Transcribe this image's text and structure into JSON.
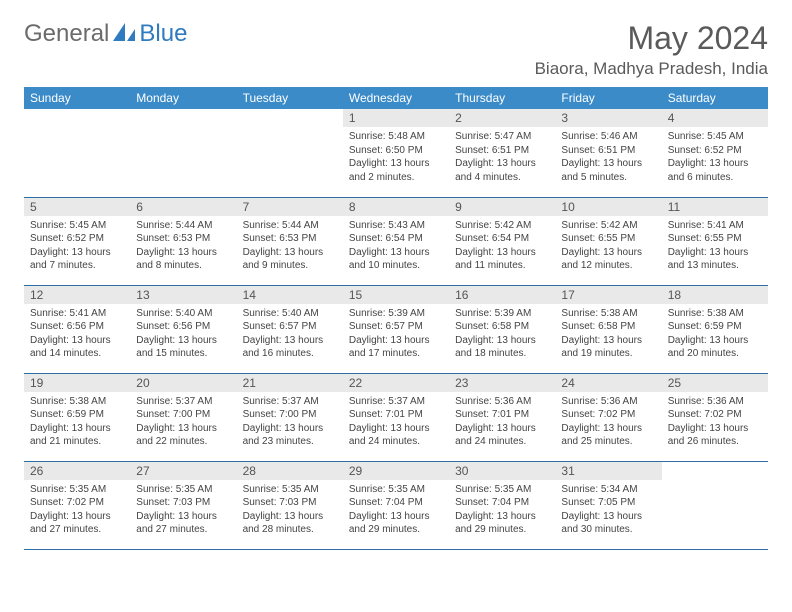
{
  "brand": {
    "part1": "General",
    "part2": "Blue"
  },
  "title": "May 2024",
  "location": "Biaora, Madhya Pradesh, India",
  "colors": {
    "header_bg": "#3b8bc9",
    "header_text": "#ffffff",
    "daynum_bg": "#e9e9e9",
    "row_border": "#2f6fa3",
    "logo_gray": "#6b6b6b",
    "logo_blue": "#2f7bbf",
    "text": "#444444"
  },
  "day_headers": [
    "Sunday",
    "Monday",
    "Tuesday",
    "Wednesday",
    "Thursday",
    "Friday",
    "Saturday"
  ],
  "weeks": [
    [
      null,
      null,
      null,
      {
        "d": "1",
        "sr": "5:48 AM",
        "ss": "6:50 PM",
        "dl": "13 hours and 2 minutes."
      },
      {
        "d": "2",
        "sr": "5:47 AM",
        "ss": "6:51 PM",
        "dl": "13 hours and 4 minutes."
      },
      {
        "d": "3",
        "sr": "5:46 AM",
        "ss": "6:51 PM",
        "dl": "13 hours and 5 minutes."
      },
      {
        "d": "4",
        "sr": "5:45 AM",
        "ss": "6:52 PM",
        "dl": "13 hours and 6 minutes."
      }
    ],
    [
      {
        "d": "5",
        "sr": "5:45 AM",
        "ss": "6:52 PM",
        "dl": "13 hours and 7 minutes."
      },
      {
        "d": "6",
        "sr": "5:44 AM",
        "ss": "6:53 PM",
        "dl": "13 hours and 8 minutes."
      },
      {
        "d": "7",
        "sr": "5:44 AM",
        "ss": "6:53 PM",
        "dl": "13 hours and 9 minutes."
      },
      {
        "d": "8",
        "sr": "5:43 AM",
        "ss": "6:54 PM",
        "dl": "13 hours and 10 minutes."
      },
      {
        "d": "9",
        "sr": "5:42 AM",
        "ss": "6:54 PM",
        "dl": "13 hours and 11 minutes."
      },
      {
        "d": "10",
        "sr": "5:42 AM",
        "ss": "6:55 PM",
        "dl": "13 hours and 12 minutes."
      },
      {
        "d": "11",
        "sr": "5:41 AM",
        "ss": "6:55 PM",
        "dl": "13 hours and 13 minutes."
      }
    ],
    [
      {
        "d": "12",
        "sr": "5:41 AM",
        "ss": "6:56 PM",
        "dl": "13 hours and 14 minutes."
      },
      {
        "d": "13",
        "sr": "5:40 AM",
        "ss": "6:56 PM",
        "dl": "13 hours and 15 minutes."
      },
      {
        "d": "14",
        "sr": "5:40 AM",
        "ss": "6:57 PM",
        "dl": "13 hours and 16 minutes."
      },
      {
        "d": "15",
        "sr": "5:39 AM",
        "ss": "6:57 PM",
        "dl": "13 hours and 17 minutes."
      },
      {
        "d": "16",
        "sr": "5:39 AM",
        "ss": "6:58 PM",
        "dl": "13 hours and 18 minutes."
      },
      {
        "d": "17",
        "sr": "5:38 AM",
        "ss": "6:58 PM",
        "dl": "13 hours and 19 minutes."
      },
      {
        "d": "18",
        "sr": "5:38 AM",
        "ss": "6:59 PM",
        "dl": "13 hours and 20 minutes."
      }
    ],
    [
      {
        "d": "19",
        "sr": "5:38 AM",
        "ss": "6:59 PM",
        "dl": "13 hours and 21 minutes."
      },
      {
        "d": "20",
        "sr": "5:37 AM",
        "ss": "7:00 PM",
        "dl": "13 hours and 22 minutes."
      },
      {
        "d": "21",
        "sr": "5:37 AM",
        "ss": "7:00 PM",
        "dl": "13 hours and 23 minutes."
      },
      {
        "d": "22",
        "sr": "5:37 AM",
        "ss": "7:01 PM",
        "dl": "13 hours and 24 minutes."
      },
      {
        "d": "23",
        "sr": "5:36 AM",
        "ss": "7:01 PM",
        "dl": "13 hours and 24 minutes."
      },
      {
        "d": "24",
        "sr": "5:36 AM",
        "ss": "7:02 PM",
        "dl": "13 hours and 25 minutes."
      },
      {
        "d": "25",
        "sr": "5:36 AM",
        "ss": "7:02 PM",
        "dl": "13 hours and 26 minutes."
      }
    ],
    [
      {
        "d": "26",
        "sr": "5:35 AM",
        "ss": "7:02 PM",
        "dl": "13 hours and 27 minutes."
      },
      {
        "d": "27",
        "sr": "5:35 AM",
        "ss": "7:03 PM",
        "dl": "13 hours and 27 minutes."
      },
      {
        "d": "28",
        "sr": "5:35 AM",
        "ss": "7:03 PM",
        "dl": "13 hours and 28 minutes."
      },
      {
        "d": "29",
        "sr": "5:35 AM",
        "ss": "7:04 PM",
        "dl": "13 hours and 29 minutes."
      },
      {
        "d": "30",
        "sr": "5:35 AM",
        "ss": "7:04 PM",
        "dl": "13 hours and 29 minutes."
      },
      {
        "d": "31",
        "sr": "5:34 AM",
        "ss": "7:05 PM",
        "dl": "13 hours and 30 minutes."
      },
      null
    ]
  ],
  "labels": {
    "sunrise": "Sunrise:",
    "sunset": "Sunset:",
    "daylight": "Daylight:"
  }
}
